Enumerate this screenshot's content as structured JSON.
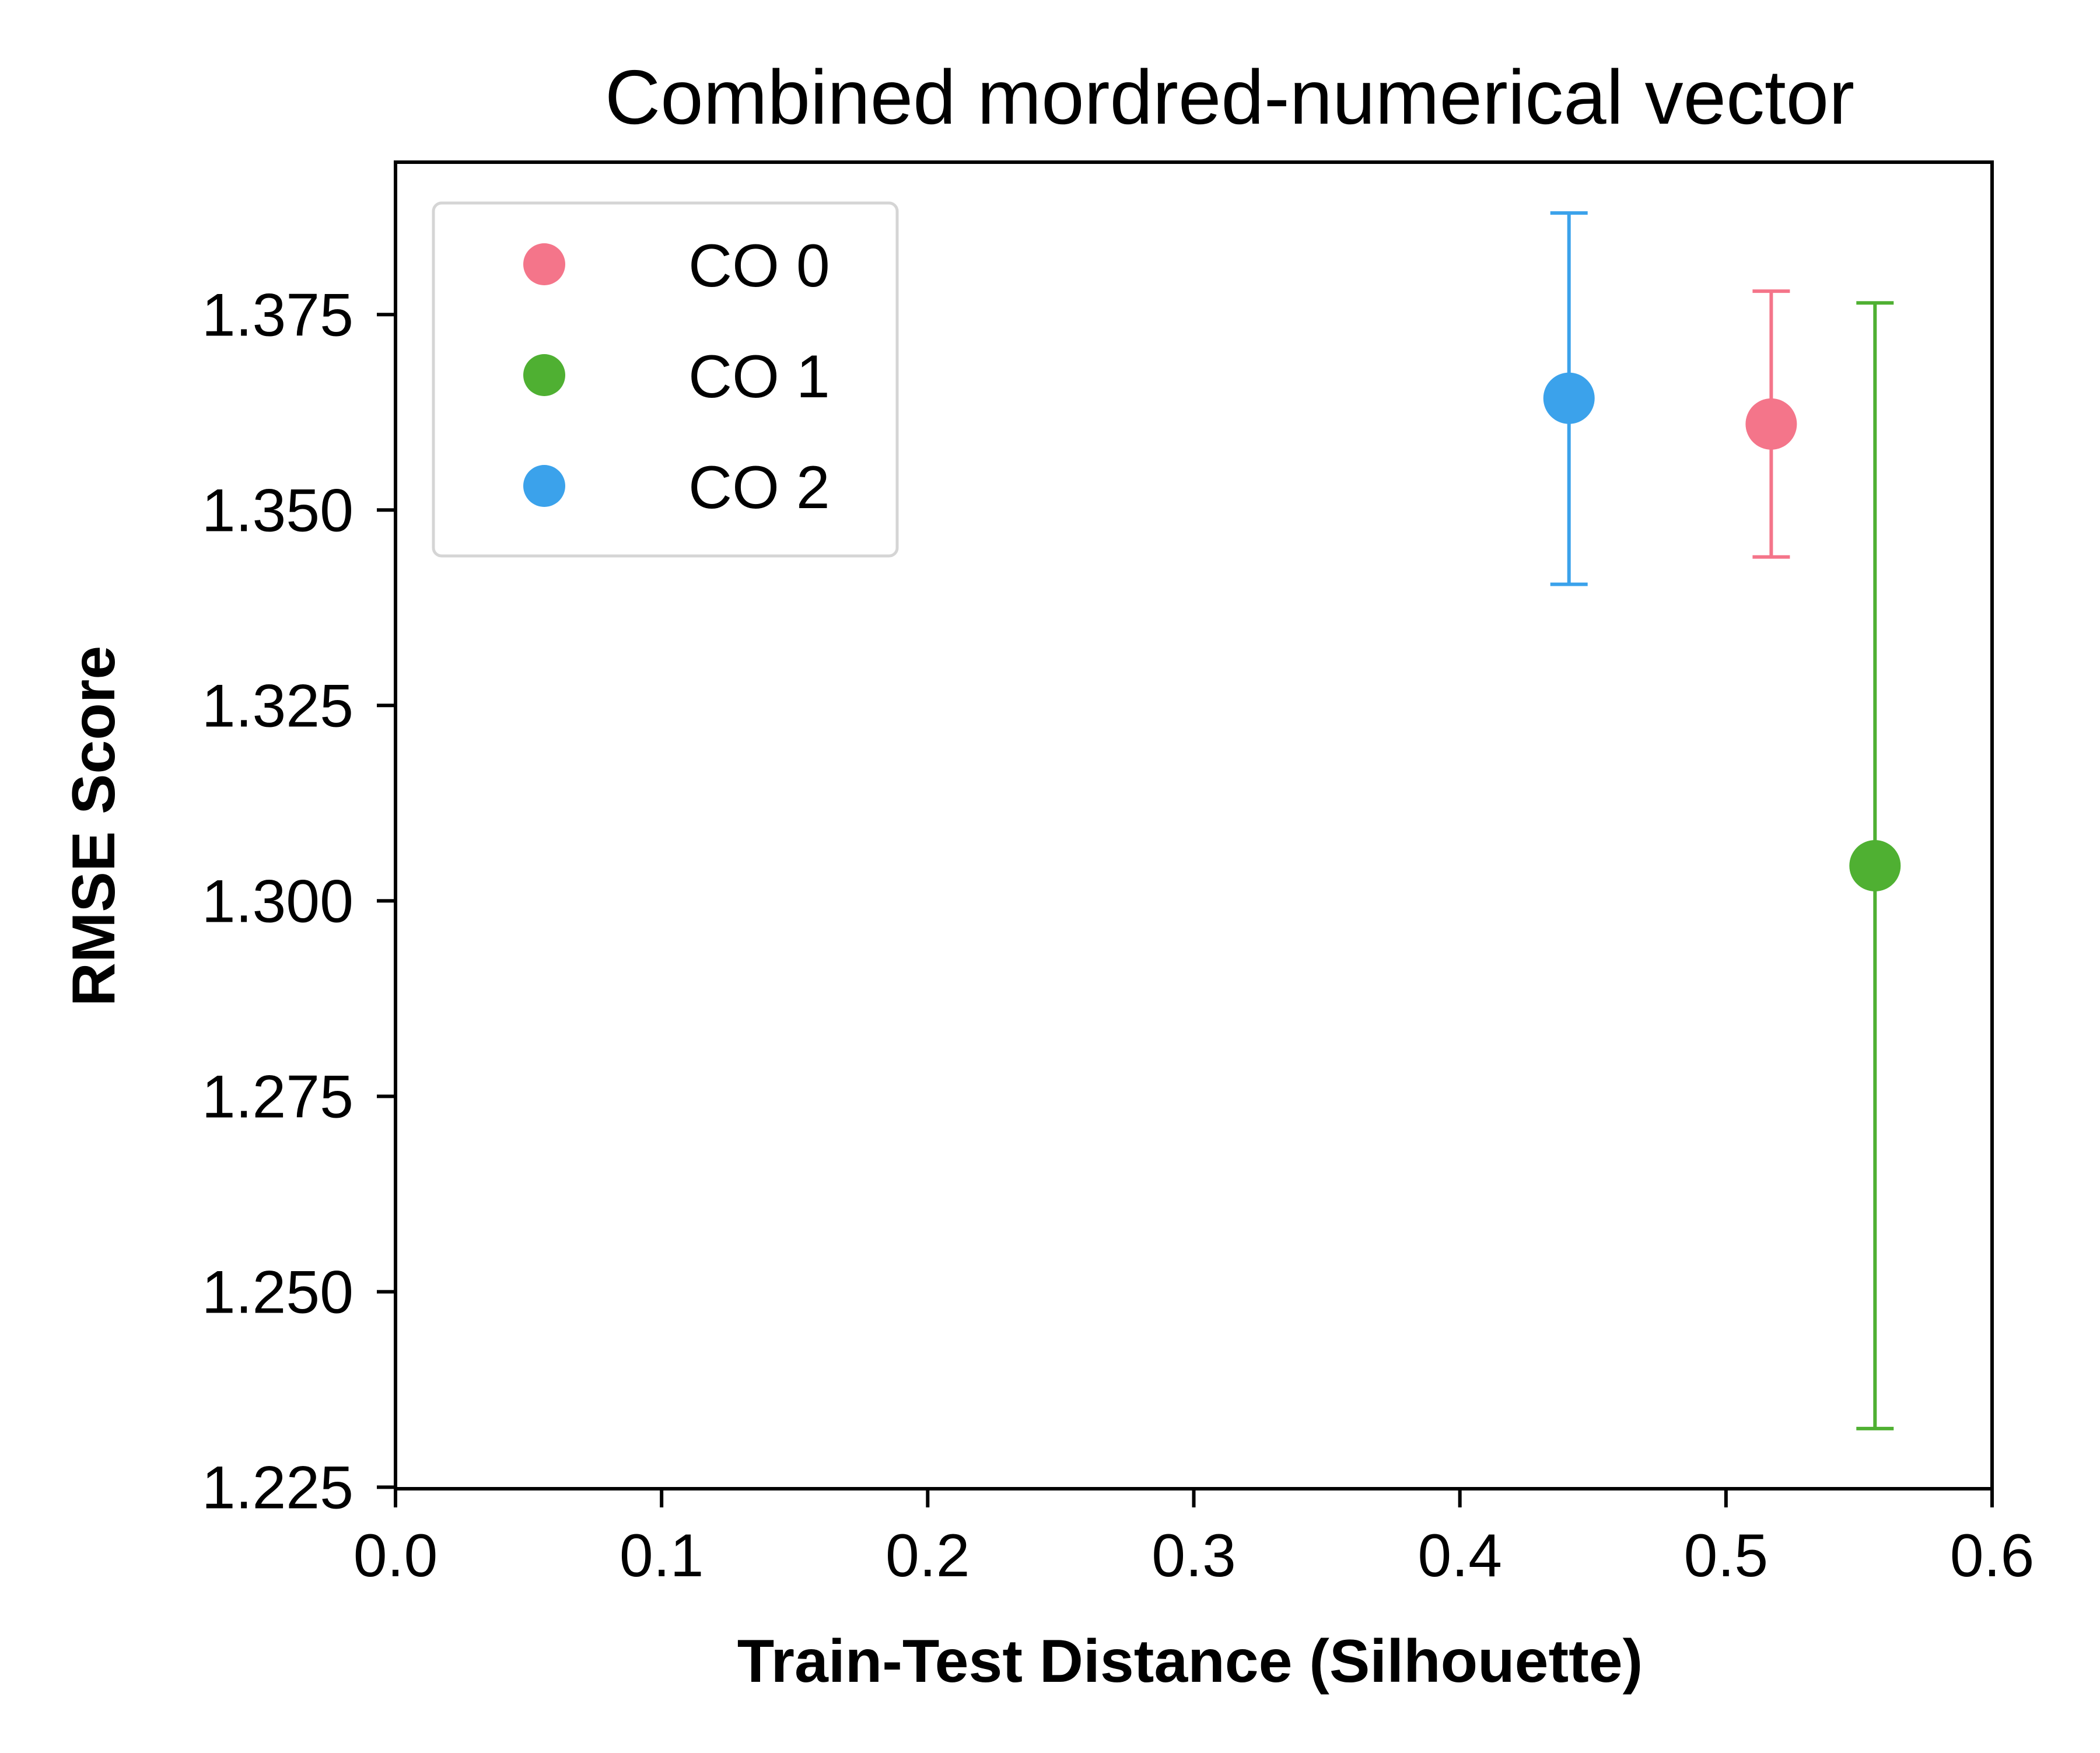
{
  "chart_data": {
    "type": "scatter",
    "title": "Combined mordred-numerical vector",
    "xlabel": "Train-Test Distance (Silhouette)",
    "ylabel": "RMSE Score",
    "xlim": [
      0.0,
      0.6
    ],
    "ylim": [
      1.2248,
      1.3945
    ],
    "x_ticks": [
      0.0,
      0.1,
      0.2,
      0.3,
      0.4,
      0.5,
      0.6
    ],
    "x_tick_labels": [
      "0.0",
      "0.1",
      "0.2",
      "0.3",
      "0.4",
      "0.5",
      "0.6"
    ],
    "y_ticks": [
      1.225,
      1.25,
      1.275,
      1.3,
      1.325,
      1.35,
      1.375
    ],
    "y_tick_labels": [
      "1.225",
      "1.250",
      "1.275",
      "1.300",
      "1.325",
      "1.350",
      "1.375"
    ],
    "grid": false,
    "legend_position": "top-left",
    "error_bars": true,
    "series": [
      {
        "name": "CO 0",
        "color": "#f4758a",
        "x": 0.517,
        "y": 1.361,
        "y_low": 1.344,
        "y_high": 1.378
      },
      {
        "name": "CO 1",
        "color": "#4fb032",
        "x": 0.556,
        "y": 1.3045,
        "y_low": 1.2325,
        "y_high": 1.3765
      },
      {
        "name": "CO 2",
        "color": "#3ba2eb",
        "x": 0.441,
        "y": 1.3643,
        "y_low": 1.3405,
        "y_high": 1.388
      }
    ]
  }
}
